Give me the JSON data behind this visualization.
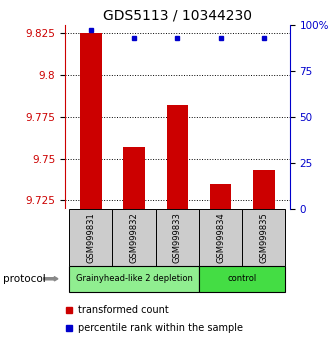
{
  "title": "GDS5113 / 10344230",
  "samples": [
    "GSM999831",
    "GSM999832",
    "GSM999833",
    "GSM999834",
    "GSM999835"
  ],
  "bar_values": [
    9.825,
    9.757,
    9.782,
    9.735,
    9.743
  ],
  "percentile_values": [
    97,
    93,
    93,
    93,
    93
  ],
  "ylim_left": [
    9.72,
    9.83
  ],
  "ylim_right": [
    0,
    100
  ],
  "yticks_left": [
    9.725,
    9.75,
    9.775,
    9.8,
    9.825
  ],
  "yticks_right": [
    0,
    25,
    50,
    75,
    100
  ],
  "bar_color": "#cc0000",
  "dot_color": "#0000cc",
  "bar_bottom": 9.72,
  "groups": [
    {
      "label": "Grainyhead-like 2 depletion",
      "indices": [
        0,
        1,
        2
      ],
      "color": "#90ee90"
    },
    {
      "label": "control",
      "indices": [
        3,
        4
      ],
      "color": "#44dd44"
    }
  ],
  "protocol_label": "protocol",
  "legend_bar_label": "transformed count",
  "legend_dot_label": "percentile rank within the sample",
  "bg_color": "#ffffff",
  "sample_box_color": "#cccccc",
  "title_fontsize": 10,
  "tick_fontsize": 7.5,
  "label_fontsize": 7
}
